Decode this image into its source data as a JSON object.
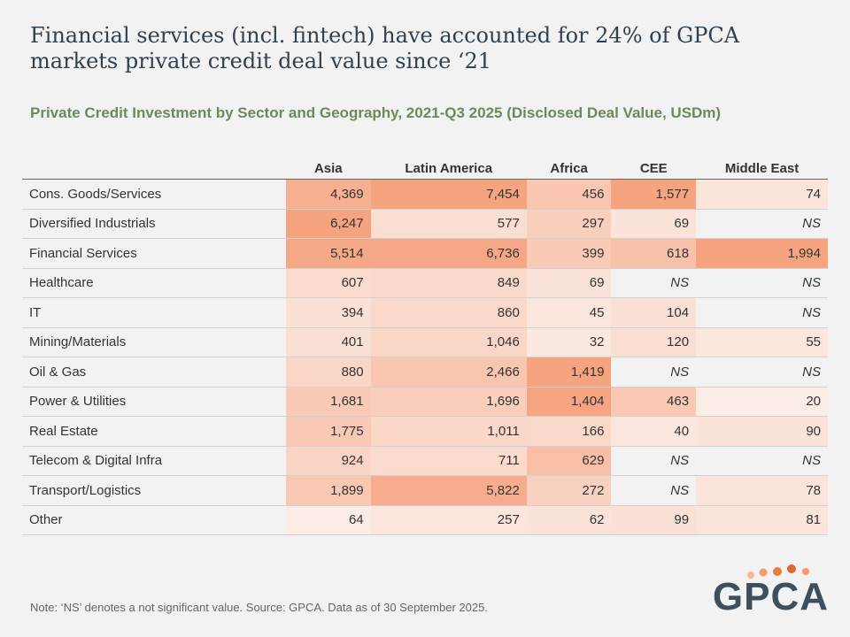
{
  "header": {
    "title": "Financial services (incl. fintech) have accounted for 24% of GPCA markets private credit deal value since ‘21",
    "subtitle": "Private Credit Investment by Sector and Geography, 2021-Q3 2025 (Disclosed Deal Value, USDm)"
  },
  "table": {
    "columns": [
      "Asia",
      "Latin America",
      "Africa",
      "CEE",
      "Middle East"
    ],
    "rows": [
      [
        "Cons. Goods/Services",
        "4,369",
        "7,454",
        "456",
        "1,577",
        "74"
      ],
      [
        "Diversified Industrials",
        "6,247",
        "577",
        "297",
        "69",
        "NS"
      ],
      [
        "Financial Services",
        "5,514",
        "6,736",
        "399",
        "618",
        "1,994"
      ],
      [
        "Healthcare",
        "607",
        "849",
        "69",
        "NS",
        "NS"
      ],
      [
        "IT",
        "394",
        "860",
        "45",
        "104",
        "NS"
      ],
      [
        "Mining/Materials",
        "401",
        "1,046",
        "32",
        "120",
        "55"
      ],
      [
        "Oil & Gas",
        "880",
        "2,466",
        "1,419",
        "NS",
        "NS"
      ],
      [
        "Power & Utilities",
        "1,681",
        "1,696",
        "1,404",
        "463",
        "20"
      ],
      [
        "Real Estate",
        "1,775",
        "1,011",
        "166",
        "40",
        "90"
      ],
      [
        "Telecom & Digital Infra",
        "924",
        "711",
        "629",
        "NS",
        "NS"
      ],
      [
        "Transport/Logistics",
        "1,899",
        "5,822",
        "272",
        "NS",
        "78"
      ],
      [
        "Other",
        "64",
        "257",
        "62",
        "99",
        "81"
      ]
    ]
  },
  "footer": {
    "note": "Note: ‘NS’ denotes a not significant value. Source: GPCA. Data as of 30 September 2025.",
    "logo": "GPCA"
  }
}
